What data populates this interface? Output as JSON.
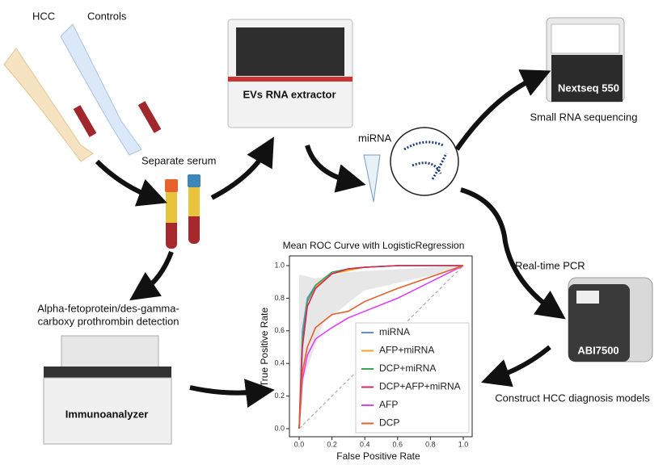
{
  "labels": {
    "hcc": "HCC",
    "controls": "Controls",
    "separate_serum": "Separate serum",
    "extractor": "EVs RNA extractor",
    "mirna": "miRNA",
    "nextseq": "Nextseq 550",
    "sequencing": "Small RNA sequencing",
    "pcr": "Real-time PCR",
    "abi": "ABI7500",
    "models": "Construct HCC diagnosis models",
    "detection": [
      "Alpha-fetoprotein/des-gamma-",
      "carboxy prothrombin detection"
    ],
    "immunoanalyzer": "Immunoanalyzer"
  },
  "roc": {
    "type": "line",
    "title": "Mean ROC Curve with LogisticRegression",
    "x_label": "False Positive Rate",
    "y_label": "True Positive Rate",
    "xlim": [
      0,
      1
    ],
    "ylim": [
      0,
      1
    ],
    "xticks": [
      {
        "value": 0,
        "label": "0.0"
      },
      0.2,
      0.4,
      0.6,
      0.8,
      {
        "value": 1,
        "label": "1.0"
      }
    ],
    "yticks": [
      {
        "value": 0,
        "label": "0.0"
      },
      0.2,
      0.4,
      0.6,
      0.8,
      {
        "value": 1,
        "label": "1.0"
      }
    ],
    "x": [
      0,
      0.02,
      0.05,
      0.1,
      0.2,
      0.3,
      0.4,
      0.6,
      0.8,
      1
    ],
    "series": [
      {
        "name": "miRNA",
        "color": "#5b8fd6",
        "values": [
          0,
          0.6,
          0.8,
          0.88,
          0.95,
          0.98,
          0.99,
          1,
          1,
          1
        ]
      },
      {
        "name": "AFP+miRNA",
        "color": "#f5a623",
        "values": [
          0,
          0.55,
          0.78,
          0.87,
          0.95,
          0.97,
          0.99,
          1,
          1,
          1
        ]
      },
      {
        "name": "DCP+miRNA",
        "color": "#3aa655",
        "values": [
          0,
          0.55,
          0.78,
          0.88,
          0.96,
          0.98,
          0.99,
          1,
          1,
          1
        ]
      },
      {
        "name": "DCP+AFP+miRNA",
        "color": "#d6275a",
        "values": [
          0,
          0.5,
          0.75,
          0.86,
          0.95,
          0.98,
          0.99,
          1,
          1,
          1
        ]
      },
      {
        "name": "AFP",
        "color": "#e040fb",
        "values": [
          0,
          0.3,
          0.45,
          0.55,
          0.62,
          0.68,
          0.72,
          0.8,
          0.9,
          1
        ]
      },
      {
        "name": "DCP",
        "color": "#e0622a",
        "values": [
          0,
          0.35,
          0.5,
          0.62,
          0.7,
          0.72,
          0.78,
          0.86,
          0.93,
          1
        ]
      }
    ]
  }
}
